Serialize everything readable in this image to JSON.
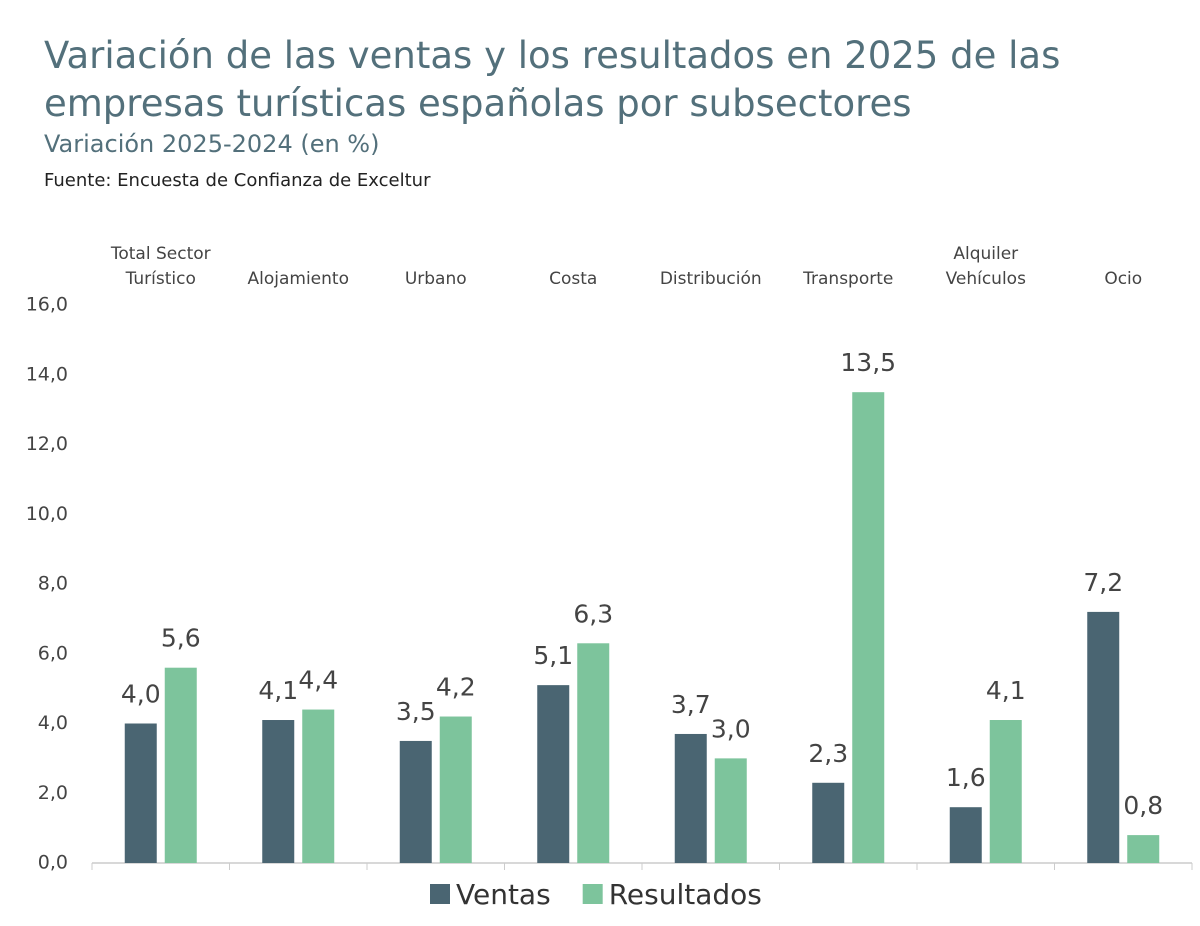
{
  "chart_data": {
    "type": "bar",
    "title": [
      "Variación de las ventas y los resultados en 2025 de las",
      "empresas turísticas españolas por subsectores"
    ],
    "subtitle": "Variación 2025-2024 (en %)",
    "source": "Fuente: Encuesta de Confianza de Exceltur",
    "categories": [
      [
        "Total Sector",
        "Turístico"
      ],
      [
        "Alojamiento"
      ],
      [
        "Urbano"
      ],
      [
        "Costa"
      ],
      [
        "Distribución"
      ],
      [
        "Transporte"
      ],
      [
        "Alquiler",
        "Vehículos"
      ],
      [
        "Ocio"
      ]
    ],
    "series": [
      {
        "name": "Ventas",
        "color": "#4a6572",
        "values": [
          4.0,
          4.1,
          3.5,
          5.1,
          3.7,
          2.3,
          1.6,
          7.2
        ],
        "value_labels": [
          "4,0",
          "4,1",
          "3,5",
          "5,1",
          "3,7",
          "2,3",
          "1,6",
          "7,2"
        ]
      },
      {
        "name": "Resultados",
        "color": "#7dc49c",
        "values": [
          5.6,
          4.4,
          4.2,
          6.3,
          3.0,
          13.5,
          4.1,
          0.8
        ],
        "value_labels": [
          "5,6",
          "4,4",
          "4,2",
          "6,3",
          "3,0",
          "13,5",
          "4,1",
          "0,8"
        ]
      }
    ],
    "ylim": [
      0,
      16
    ],
    "yticks": [
      {
        "value": 0,
        "label": "0,0"
      },
      {
        "value": 2,
        "label": "2,0"
      },
      {
        "value": 4,
        "label": "4,0"
      },
      {
        "value": 6,
        "label": "6,0"
      },
      {
        "value": 8,
        "label": "8,0"
      },
      {
        "value": 10,
        "label": "10,0"
      },
      {
        "value": 12,
        "label": "12,0"
      },
      {
        "value": 14,
        "label": "14,0"
      },
      {
        "value": 16,
        "label": "16,0"
      }
    ],
    "grid": false,
    "legend": "bottom"
  }
}
